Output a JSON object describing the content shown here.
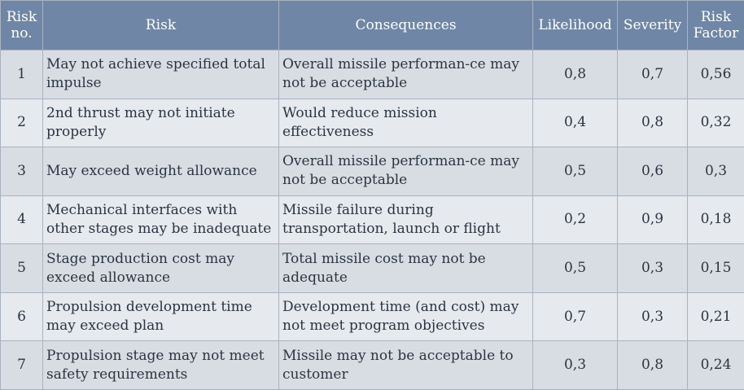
{
  "headers": {
    "risk_no": "Risk no.",
    "risk": "Risk",
    "consequences": "Consequences",
    "likelihood": "Likelihood",
    "severity": "Severity",
    "risk_factor": "Risk Factor"
  },
  "rows": [
    {
      "no": "1",
      "risk": "May not achieve specified total impulse",
      "consequence": "Overall missile performan-ce may not be acceptable",
      "likelihood": "0,8",
      "severity": "0,7",
      "factor": "0,56"
    },
    {
      "no": "2",
      "risk": "2nd thrust may not initiate properly",
      "consequence": "Would reduce mission effectiveness",
      "likelihood": "0,4",
      "severity": "0,8",
      "factor": "0,32"
    },
    {
      "no": "3",
      "risk": "May exceed weight allowance",
      "consequence": "Overall missile performan-ce may not be acceptable",
      "likelihood": "0,5",
      "severity": "0,6",
      "factor": "0,3"
    },
    {
      "no": "4",
      "risk": "Mechanical interfaces with other stages may be inadequate",
      "consequence": "Missile failure during transportation, launch or flight",
      "likelihood": "0,2",
      "severity": "0,9",
      "factor": "0,18"
    },
    {
      "no": "5",
      "risk": "Stage production cost may exceed allowance",
      "consequence": "Total missile cost may not be adequate",
      "likelihood": "0,5",
      "severity": "0,3",
      "factor": "0,15"
    },
    {
      "no": "6",
      "risk": "Propulsion development time may exceed plan",
      "consequence": "Development time (and cost) may not meet program objectives",
      "likelihood": "0,7",
      "severity": "0,3",
      "factor": "0,21"
    },
    {
      "no": "7",
      "risk": "Propulsion stage may not meet safety requirements",
      "consequence": "Missile may not be acceptable to customer",
      "likelihood": "0,3",
      "severity": "0,8",
      "factor": "0,24"
    }
  ]
}
